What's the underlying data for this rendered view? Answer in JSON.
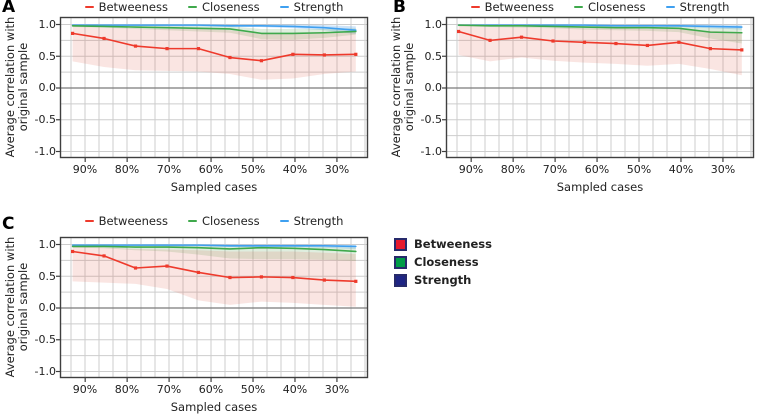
{
  "legend": {
    "items": [
      {
        "label": "Betweeness",
        "color": "#e6192d"
      },
      {
        "label": "Closeness",
        "color": "#009c47"
      },
      {
        "label": "Strength",
        "color": "#1e2585"
      }
    ]
  },
  "chart_data": [
    {
      "type": "line",
      "panel": "A",
      "xlabel": "Sampled cases",
      "ylabel": "Average correlation with original sample",
      "ylabel_lines": [
        "Average correlation with",
        "original sample"
      ],
      "x_percent": [
        93,
        85.5,
        78,
        70.5,
        63,
        55.5,
        48,
        40.5,
        33,
        25.5
      ],
      "xtick_labels": [
        "90%",
        "80%",
        "70%",
        "60%",
        "50%",
        "40%",
        "30%"
      ],
      "xtick_percent": [
        90,
        80,
        70,
        60,
        50,
        40,
        30
      ],
      "ytick_labels": [
        "1.0",
        "0.5",
        "0.0",
        "-0.5",
        "-1.0"
      ],
      "ytick_values": [
        1.0,
        0.5,
        0.0,
        -0.5,
        -1.0
      ],
      "ylim": [
        -1.12,
        1.12
      ],
      "x_axis_reversed": true,
      "grid": true,
      "legend_position": "top",
      "series": [
        {
          "name": "Betweeness",
          "color": "#ee3a2c",
          "markers": true,
          "values": [
            0.86,
            0.78,
            0.66,
            0.62,
            0.62,
            0.48,
            0.43,
            0.53,
            0.52,
            0.53
          ],
          "band_lower": [
            0.42,
            0.33,
            0.28,
            0.27,
            0.26,
            0.22,
            0.13,
            0.15,
            0.22,
            0.26
          ],
          "band_upper": [
            0.97,
            0.95,
            0.94,
            0.93,
            0.93,
            0.91,
            0.85,
            0.85,
            0.86,
            0.88
          ]
        },
        {
          "name": "Closeness",
          "color": "#3fa94c",
          "markers": false,
          "values": [
            0.98,
            0.97,
            0.96,
            0.95,
            0.94,
            0.93,
            0.86,
            0.86,
            0.87,
            0.89
          ],
          "band_lower": [
            0.96,
            0.95,
            0.93,
            0.91,
            0.89,
            0.87,
            0.77,
            0.76,
            0.79,
            0.84
          ],
          "band_upper": [
            0.99,
            0.99,
            0.98,
            0.98,
            0.97,
            0.97,
            0.93,
            0.93,
            0.93,
            0.94
          ]
        },
        {
          "name": "Strength",
          "color": "#3fa0f0",
          "markers": false,
          "values": [
            0.99,
            0.99,
            0.99,
            0.99,
            0.99,
            0.98,
            0.98,
            0.97,
            0.95,
            0.91
          ],
          "band_lower": [
            0.98,
            0.98,
            0.98,
            0.97,
            0.97,
            0.96,
            0.96,
            0.94,
            0.91,
            0.85
          ],
          "band_upper": [
            1.0,
            1.0,
            1.0,
            1.0,
            1.0,
            1.0,
            1.0,
            1.0,
            0.99,
            0.97
          ]
        }
      ]
    },
    {
      "type": "line",
      "panel": "B",
      "xlabel": "Sampled cases",
      "ylabel": "Average correlation with original sample",
      "ylabel_lines": [
        "Average correlation with",
        "original sample"
      ],
      "x_percent": [
        93,
        85.5,
        78,
        70.5,
        63,
        55.5,
        48,
        40.5,
        33,
        25.5
      ],
      "xtick_labels": [
        "90%",
        "80%",
        "70%",
        "60%",
        "50%",
        "40%",
        "30%"
      ],
      "xtick_percent": [
        90,
        80,
        70,
        60,
        50,
        40,
        30
      ],
      "ytick_labels": [
        "1.0",
        "0.5",
        "0.0",
        "-0.5",
        "-1.0"
      ],
      "ytick_values": [
        1.0,
        0.5,
        0.0,
        -0.5,
        -1.0
      ],
      "ylim": [
        -1.12,
        1.12
      ],
      "x_axis_reversed": true,
      "grid": true,
      "legend_position": "top",
      "series": [
        {
          "name": "Betweeness",
          "color": "#ee3a2c",
          "markers": true,
          "values": [
            0.89,
            0.75,
            0.8,
            0.74,
            0.72,
            0.7,
            0.67,
            0.72,
            0.62,
            0.6
          ],
          "band_lower": [
            0.52,
            0.42,
            0.48,
            0.43,
            0.4,
            0.38,
            0.35,
            0.38,
            0.3,
            0.2
          ],
          "band_upper": [
            0.98,
            0.96,
            0.96,
            0.95,
            0.94,
            0.94,
            0.93,
            0.93,
            0.9,
            0.88
          ]
        },
        {
          "name": "Closeness",
          "color": "#3fa94c",
          "markers": false,
          "values": [
            0.99,
            0.98,
            0.98,
            0.97,
            0.96,
            0.95,
            0.95,
            0.94,
            0.88,
            0.87
          ],
          "band_lower": [
            0.97,
            0.96,
            0.95,
            0.94,
            0.92,
            0.91,
            0.9,
            0.88,
            0.78,
            0.7
          ],
          "band_upper": [
            1.0,
            0.99,
            0.99,
            0.99,
            0.98,
            0.98,
            0.98,
            0.97,
            0.95,
            0.94
          ]
        },
        {
          "name": "Strength",
          "color": "#3fa0f0",
          "markers": false,
          "values": [
            0.99,
            0.99,
            0.99,
            0.99,
            0.99,
            0.98,
            0.98,
            0.98,
            0.97,
            0.96
          ],
          "band_lower": [
            0.99,
            0.98,
            0.98,
            0.98,
            0.97,
            0.97,
            0.97,
            0.96,
            0.94,
            0.92
          ],
          "band_upper": [
            1.0,
            1.0,
            1.0,
            1.0,
            1.0,
            1.0,
            1.0,
            1.0,
            1.0,
            0.99
          ]
        }
      ]
    },
    {
      "type": "line",
      "panel": "C",
      "xlabel": "Sampled cases",
      "ylabel": "Average correlation with original sample",
      "ylabel_lines": [
        "Average correlation with",
        "original sample"
      ],
      "x_percent": [
        93,
        85.5,
        78,
        70.5,
        63,
        55.5,
        48,
        40.5,
        33,
        25.5
      ],
      "xtick_labels": [
        "90%",
        "80%",
        "70%",
        "60%",
        "50%",
        "40%",
        "30%"
      ],
      "xtick_percent": [
        90,
        80,
        70,
        60,
        50,
        40,
        30
      ],
      "ytick_labels": [
        "1.0",
        "0.5",
        "0.0",
        "-0.5",
        "-1.0"
      ],
      "ytick_values": [
        1.0,
        0.5,
        0.0,
        -0.5,
        -1.0
      ],
      "ylim": [
        -1.12,
        1.12
      ],
      "x_axis_reversed": true,
      "grid": true,
      "legend_position": "top",
      "series": [
        {
          "name": "Betweeness",
          "color": "#ee3a2c",
          "markers": true,
          "values": [
            0.89,
            0.82,
            0.63,
            0.66,
            0.56,
            0.48,
            0.49,
            0.48,
            0.44,
            0.42
          ],
          "band_lower": [
            0.42,
            0.4,
            0.38,
            0.3,
            0.12,
            0.05,
            0.1,
            0.08,
            0.05,
            0.02
          ],
          "band_upper": [
            0.97,
            0.95,
            0.93,
            0.92,
            0.91,
            0.89,
            0.89,
            0.89,
            0.87,
            0.85
          ]
        },
        {
          "name": "Closeness",
          "color": "#3fa94c",
          "markers": false,
          "values": [
            0.97,
            0.97,
            0.96,
            0.96,
            0.95,
            0.93,
            0.95,
            0.94,
            0.92,
            0.89
          ],
          "band_lower": [
            0.95,
            0.94,
            0.91,
            0.89,
            0.84,
            0.78,
            0.77,
            0.77,
            0.76,
            0.74
          ],
          "band_upper": [
            0.99,
            0.99,
            0.98,
            0.98,
            0.98,
            0.97,
            0.98,
            0.97,
            0.96,
            0.95
          ]
        },
        {
          "name": "Strength",
          "color": "#3fa0f0",
          "markers": false,
          "values": [
            0.99,
            0.99,
            0.99,
            0.99,
            0.99,
            0.98,
            0.98,
            0.98,
            0.98,
            0.97
          ],
          "band_lower": [
            0.98,
            0.98,
            0.98,
            0.97,
            0.97,
            0.96,
            0.96,
            0.96,
            0.95,
            0.93
          ],
          "band_upper": [
            1.0,
            1.0,
            1.0,
            1.0,
            1.0,
            1.0,
            1.0,
            1.0,
            1.0,
            0.99
          ]
        }
      ]
    }
  ]
}
